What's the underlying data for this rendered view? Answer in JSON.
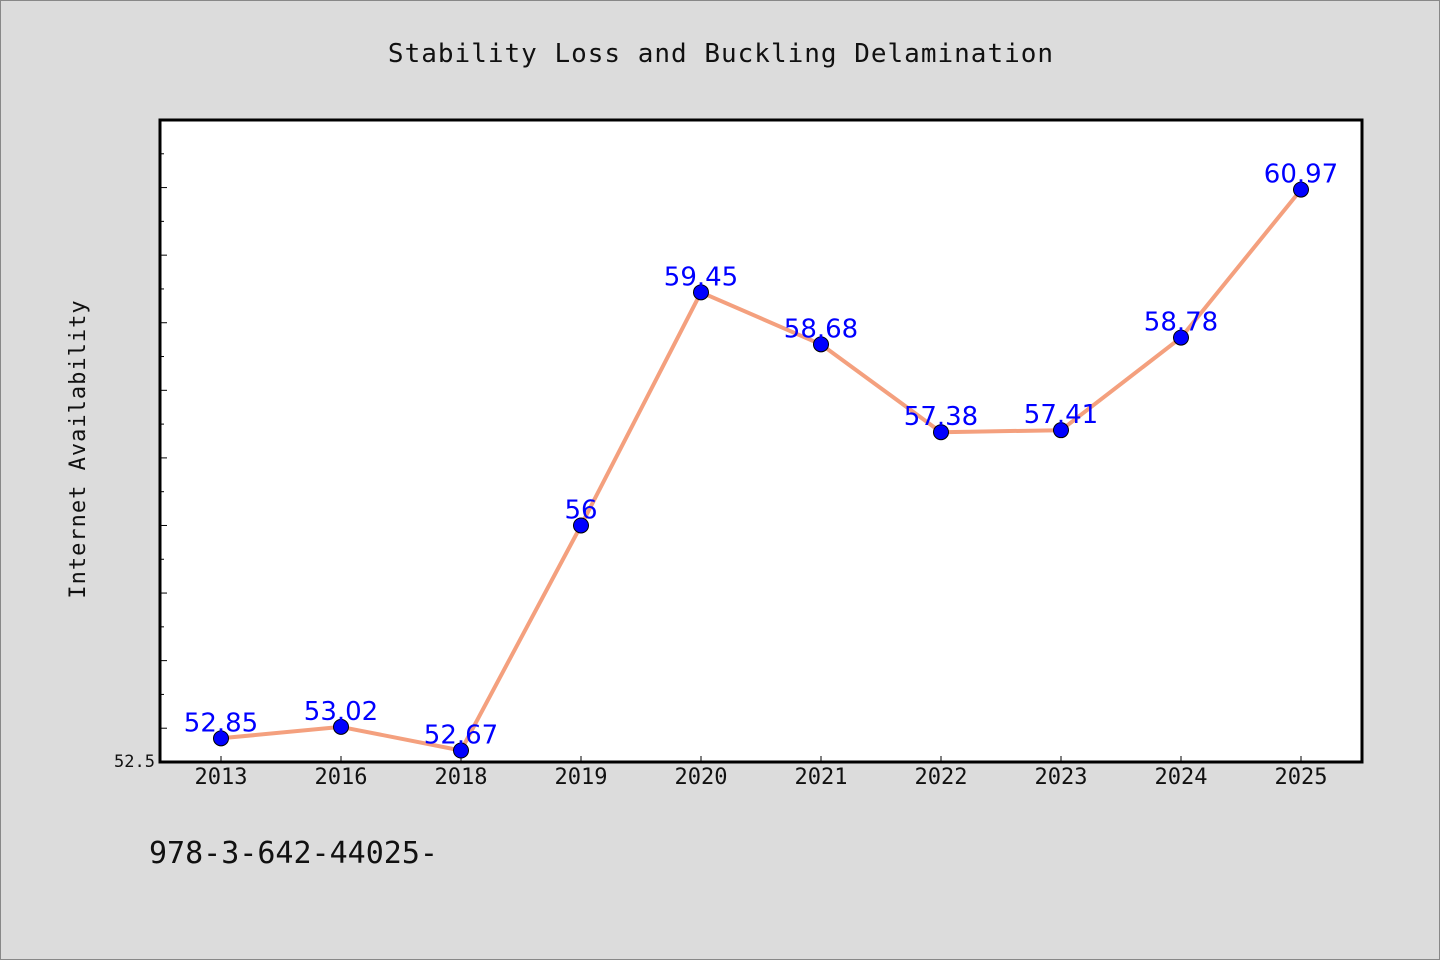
{
  "chart_data": {
    "type": "line",
    "title": "Stability Loss and Buckling Delamination",
    "xlabel": "",
    "ylabel": "Internet Availability",
    "categories": [
      "2013",
      "2016",
      "2018",
      "2019",
      "2020",
      "2021",
      "2022",
      "2023",
      "2024",
      "2025"
    ],
    "series": [
      {
        "values": [
          52.85,
          53.02,
          52.67,
          56,
          59.45,
          58.68,
          57.38,
          57.41,
          58.78,
          60.97
        ],
        "data_labels": [
          "52.85",
          "53.02",
          "52.67",
          "56",
          "59.45",
          "58.68",
          "57.38",
          "57.41",
          "58.78",
          "60.97"
        ]
      }
    ],
    "yticks": [
      "52.5"
    ],
    "ylim": [
      52.5,
      62.0
    ],
    "grid": false,
    "legend": "none",
    "colors": {
      "line": "#f4a07e",
      "marker": "#0000ff",
      "label": "#0000ff",
      "plot_bg": "#ffffff",
      "page_bg": "#dcdcdc"
    }
  },
  "footer": {
    "text": "978-3-642-44025-"
  }
}
